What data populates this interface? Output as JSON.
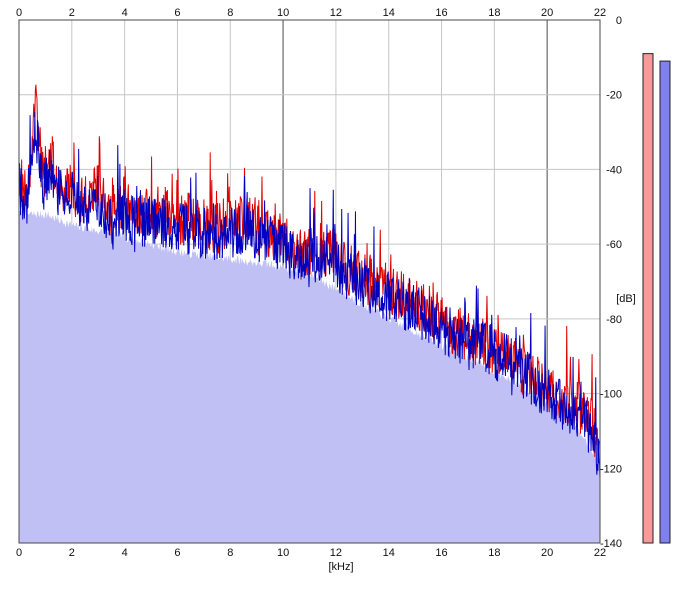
{
  "chart_data": {
    "type": "area",
    "title": "",
    "xlabel": "[kHz]",
    "ylabel": "[dB]",
    "x_ticks": [
      "0",
      "2",
      "4",
      "6",
      "8",
      "10",
      "12",
      "14",
      "16",
      "18",
      "20",
      "22"
    ],
    "x_ticks_top": [
      "0",
      "2",
      "4",
      "6",
      "8",
      "10",
      "12",
      "14",
      "16",
      "18",
      "20",
      "22"
    ],
    "y_ticks": [
      "0",
      "-20",
      "-40",
      "-60",
      "-80",
      "-100",
      "-120",
      "-140"
    ],
    "xlim": [
      0,
      22
    ],
    "ylim": [
      -140,
      0
    ],
    "grid": true,
    "colors": {
      "background": "#ffffff",
      "grid": "#c6c6c6",
      "grid_major": "#7f7f7f",
      "area_fill": "#c0c0f4",
      "left_channel": "#e00000",
      "right_channel": "#0000c0",
      "left_meter": "#f99999",
      "right_meter": "#8080ee",
      "meter_border": "#222222"
    },
    "series": [
      {
        "channel": "left",
        "color": "#e00000",
        "points": [
          [
            0.0,
            -41
          ],
          [
            0.3,
            -47
          ],
          [
            0.6,
            -21
          ],
          [
            0.9,
            -42
          ],
          [
            1.2,
            -36
          ],
          [
            1.5,
            -44
          ],
          [
            2.0,
            -45
          ],
          [
            2.5,
            -49
          ],
          [
            3.0,
            -44
          ],
          [
            3.5,
            -54
          ],
          [
            4.0,
            -48
          ],
          [
            4.5,
            -53
          ],
          [
            5.0,
            -51
          ],
          [
            5.5,
            -52
          ],
          [
            6.0,
            -54
          ],
          [
            6.5,
            -53
          ],
          [
            7.0,
            -55
          ],
          [
            7.5,
            -56
          ],
          [
            8.0,
            -55
          ],
          [
            8.5,
            -53
          ],
          [
            9.0,
            -56
          ],
          [
            9.5,
            -57
          ],
          [
            10.0,
            -59
          ],
          [
            10.5,
            -61
          ],
          [
            11.0,
            -62
          ],
          [
            11.5,
            -61
          ],
          [
            12.0,
            -63
          ],
          [
            12.5,
            -67
          ],
          [
            13.0,
            -68
          ],
          [
            13.5,
            -71
          ],
          [
            14.0,
            -72
          ],
          [
            14.5,
            -74
          ],
          [
            15.0,
            -76
          ],
          [
            15.5,
            -78
          ],
          [
            16.0,
            -80
          ],
          [
            16.5,
            -83
          ],
          [
            17.0,
            -85
          ],
          [
            17.5,
            -86
          ],
          [
            18.0,
            -88
          ],
          [
            18.5,
            -89
          ],
          [
            19.0,
            -93
          ],
          [
            19.5,
            -96
          ],
          [
            20.0,
            -99
          ],
          [
            20.5,
            -101
          ],
          [
            21.0,
            -102
          ],
          [
            21.5,
            -106
          ],
          [
            22.0,
            -113
          ]
        ]
      },
      {
        "channel": "right",
        "color": "#0000c0",
        "points": [
          [
            0.0,
            -45
          ],
          [
            0.3,
            -49
          ],
          [
            0.6,
            -28
          ],
          [
            0.9,
            -45
          ],
          [
            1.2,
            -40
          ],
          [
            1.5,
            -46
          ],
          [
            2.0,
            -47
          ],
          [
            2.5,
            -51
          ],
          [
            3.0,
            -48
          ],
          [
            3.5,
            -55
          ],
          [
            4.0,
            -52
          ],
          [
            4.5,
            -55
          ],
          [
            5.0,
            -53
          ],
          [
            5.5,
            -55
          ],
          [
            6.0,
            -56
          ],
          [
            6.5,
            -56
          ],
          [
            7.0,
            -57
          ],
          [
            7.5,
            -58
          ],
          [
            8.0,
            -57
          ],
          [
            8.5,
            -56
          ],
          [
            9.0,
            -58
          ],
          [
            9.5,
            -59
          ],
          [
            10.0,
            -61
          ],
          [
            10.5,
            -63
          ],
          [
            11.0,
            -64
          ],
          [
            11.5,
            -64
          ],
          [
            12.0,
            -66
          ],
          [
            12.5,
            -69
          ],
          [
            13.0,
            -70
          ],
          [
            13.5,
            -73
          ],
          [
            14.0,
            -74
          ],
          [
            14.5,
            -76
          ],
          [
            15.0,
            -78
          ],
          [
            15.5,
            -80
          ],
          [
            16.0,
            -82
          ],
          [
            16.5,
            -85
          ],
          [
            17.0,
            -86
          ],
          [
            17.5,
            -87
          ],
          [
            18.0,
            -90
          ],
          [
            18.5,
            -90
          ],
          [
            19.0,
            -94
          ],
          [
            19.5,
            -97
          ],
          [
            20.0,
            -101
          ],
          [
            20.5,
            -103
          ],
          [
            21.0,
            -104
          ],
          [
            21.5,
            -108
          ],
          [
            22.0,
            -117
          ]
        ]
      }
    ],
    "fill_floor_points": [
      [
        0.0,
        -52
      ],
      [
        1.0,
        -52
      ],
      [
        2.0,
        -55
      ],
      [
        4.0,
        -58
      ],
      [
        6.0,
        -62
      ],
      [
        8.0,
        -64
      ],
      [
        10.0,
        -66
      ],
      [
        11.0,
        -68
      ],
      [
        12.0,
        -72
      ],
      [
        14.0,
        -80
      ],
      [
        16.0,
        -87
      ],
      [
        18.0,
        -94
      ],
      [
        20.0,
        -102
      ],
      [
        21.0,
        -108
      ],
      [
        22.0,
        -118
      ]
    ],
    "meters": {
      "left": -9,
      "right": -11
    }
  }
}
